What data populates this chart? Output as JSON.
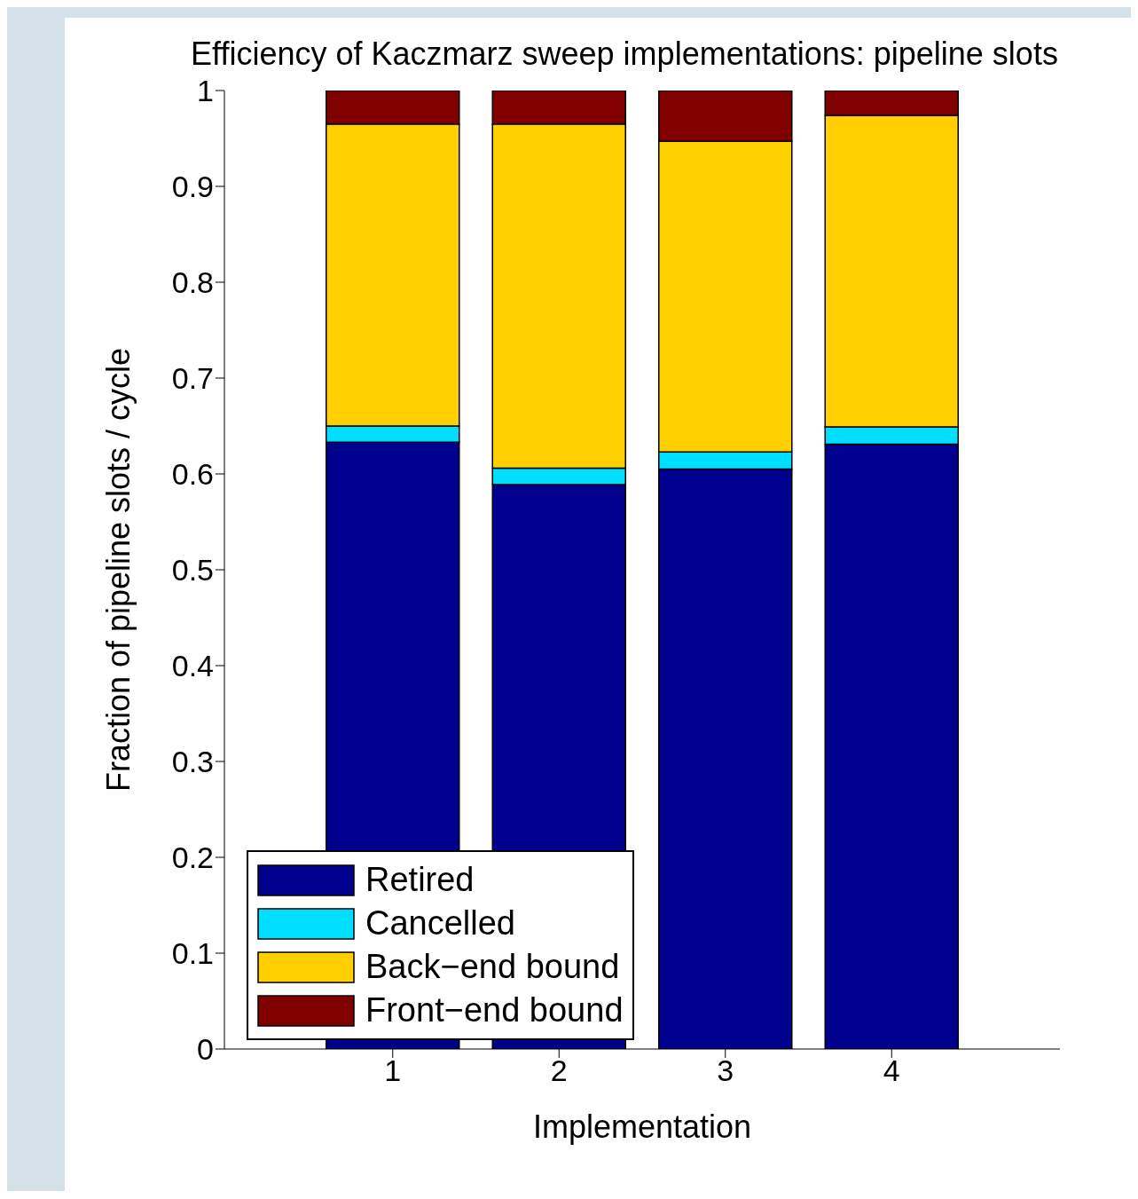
{
  "chart_data": {
    "type": "bar",
    "title": "Efficiency of Kaczmarz sweep implementations: pipeline slots",
    "xlabel": "Implementation",
    "ylabel": "Fraction of pipeline slots / cycle",
    "categories": [
      "1",
      "2",
      "3",
      "4"
    ],
    "stacked": true,
    "series": [
      {
        "name": "Retired",
        "color": "#00008f",
        "values": [
          0.633,
          0.589,
          0.605,
          0.631
        ]
      },
      {
        "name": "Cancelled",
        "color": "#00dfff",
        "values": [
          0.017,
          0.017,
          0.018,
          0.018
        ]
      },
      {
        "name": "Back−end bound",
        "color": "#ffcf00",
        "values": [
          0.315,
          0.359,
          0.324,
          0.325
        ]
      },
      {
        "name": "Front−end bound",
        "color": "#800000",
        "values": [
          0.035,
          0.035,
          0.053,
          0.026
        ]
      }
    ],
    "ylim": [
      0,
      1
    ],
    "yticks": [
      0,
      0.1,
      0.2,
      0.3,
      0.4,
      0.5,
      0.6,
      0.7,
      0.8,
      0.9,
      1
    ],
    "grid": false,
    "legend": "bottom left"
  }
}
